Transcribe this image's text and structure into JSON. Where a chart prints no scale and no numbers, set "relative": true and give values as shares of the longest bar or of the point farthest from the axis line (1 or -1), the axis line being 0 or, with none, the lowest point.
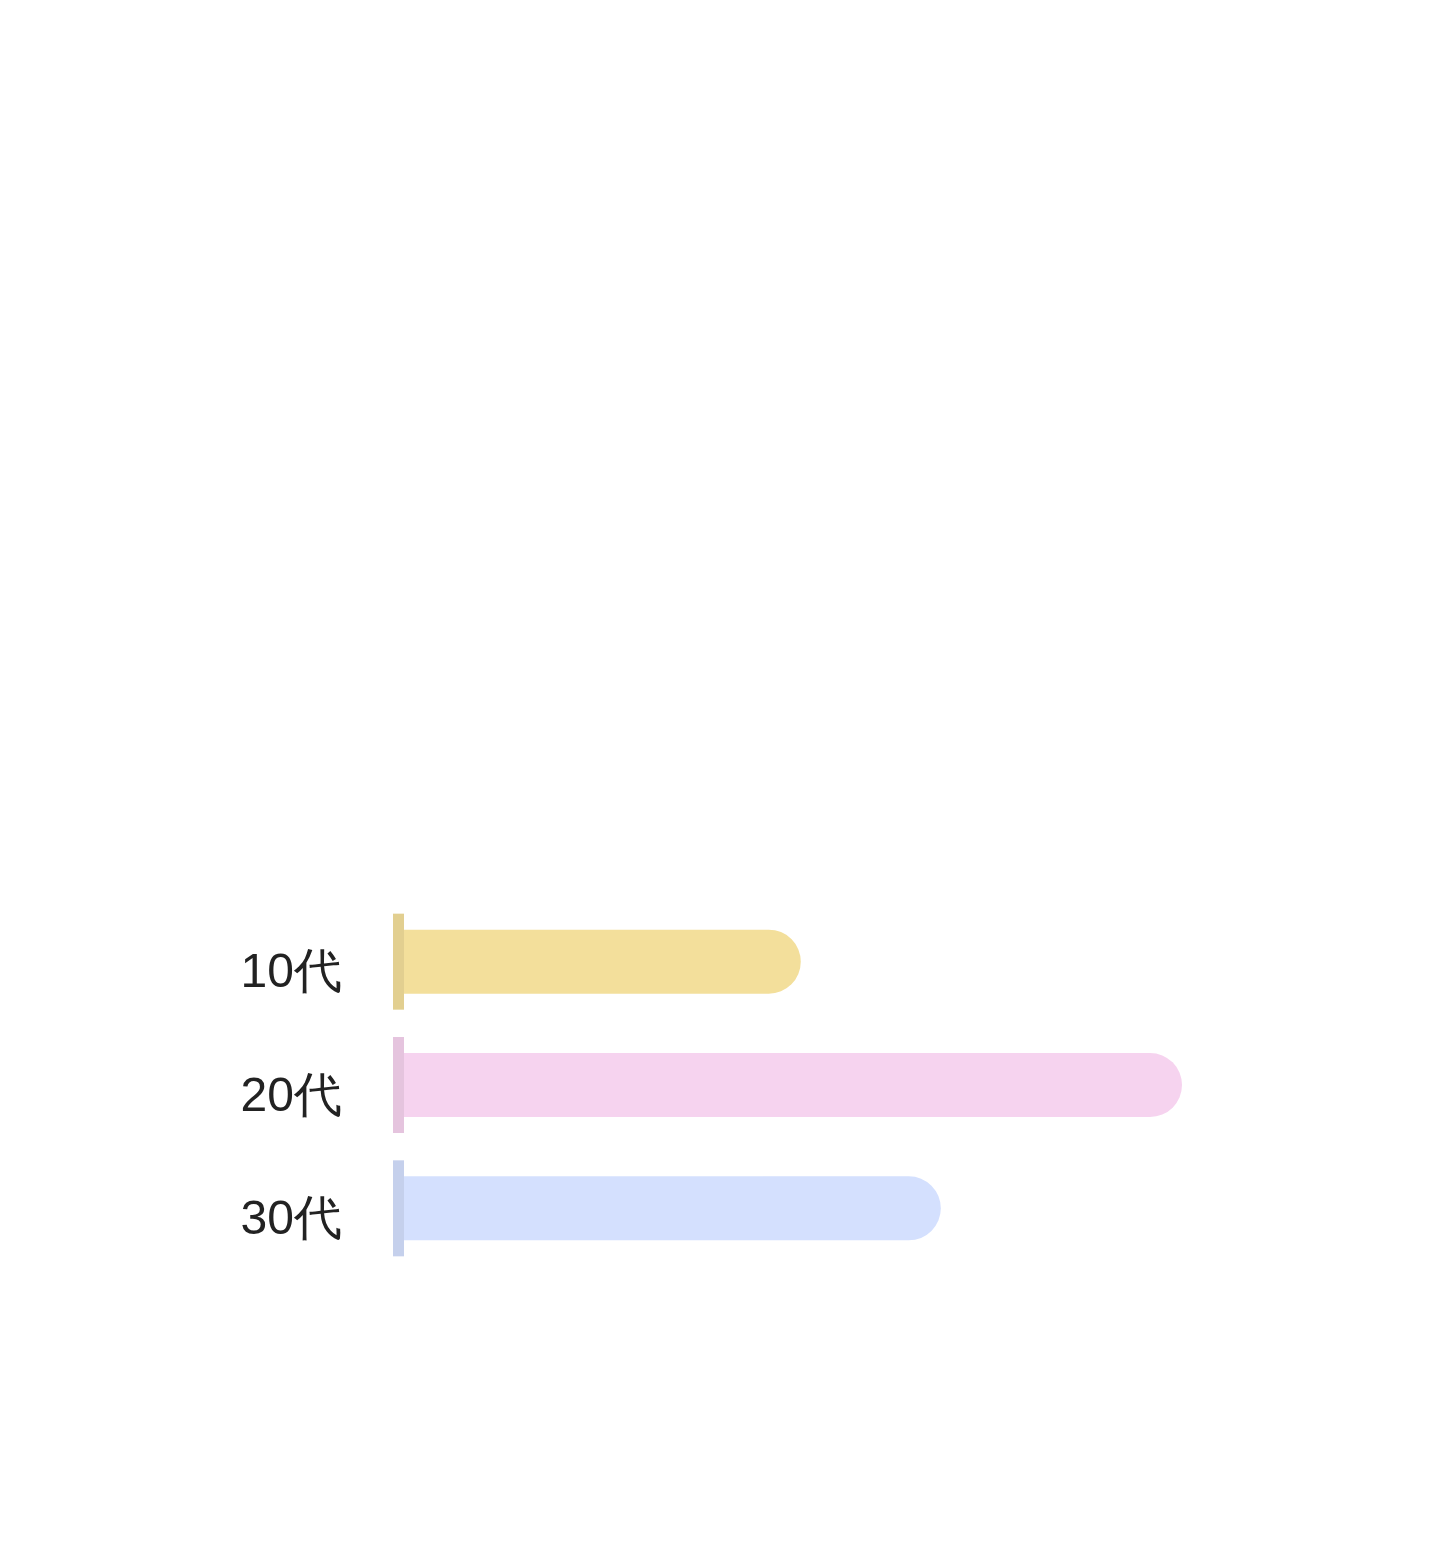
{
  "chart_data": {
    "type": "bar",
    "orientation": "horizontal",
    "relative": true,
    "categories": [
      "10代",
      "20代",
      "30代"
    ],
    "values": [
      0.51,
      1,
      0.69
    ],
    "colors": [
      "#f3df9b",
      "#f6d3ef",
      "#d4e0fe"
    ]
  }
}
